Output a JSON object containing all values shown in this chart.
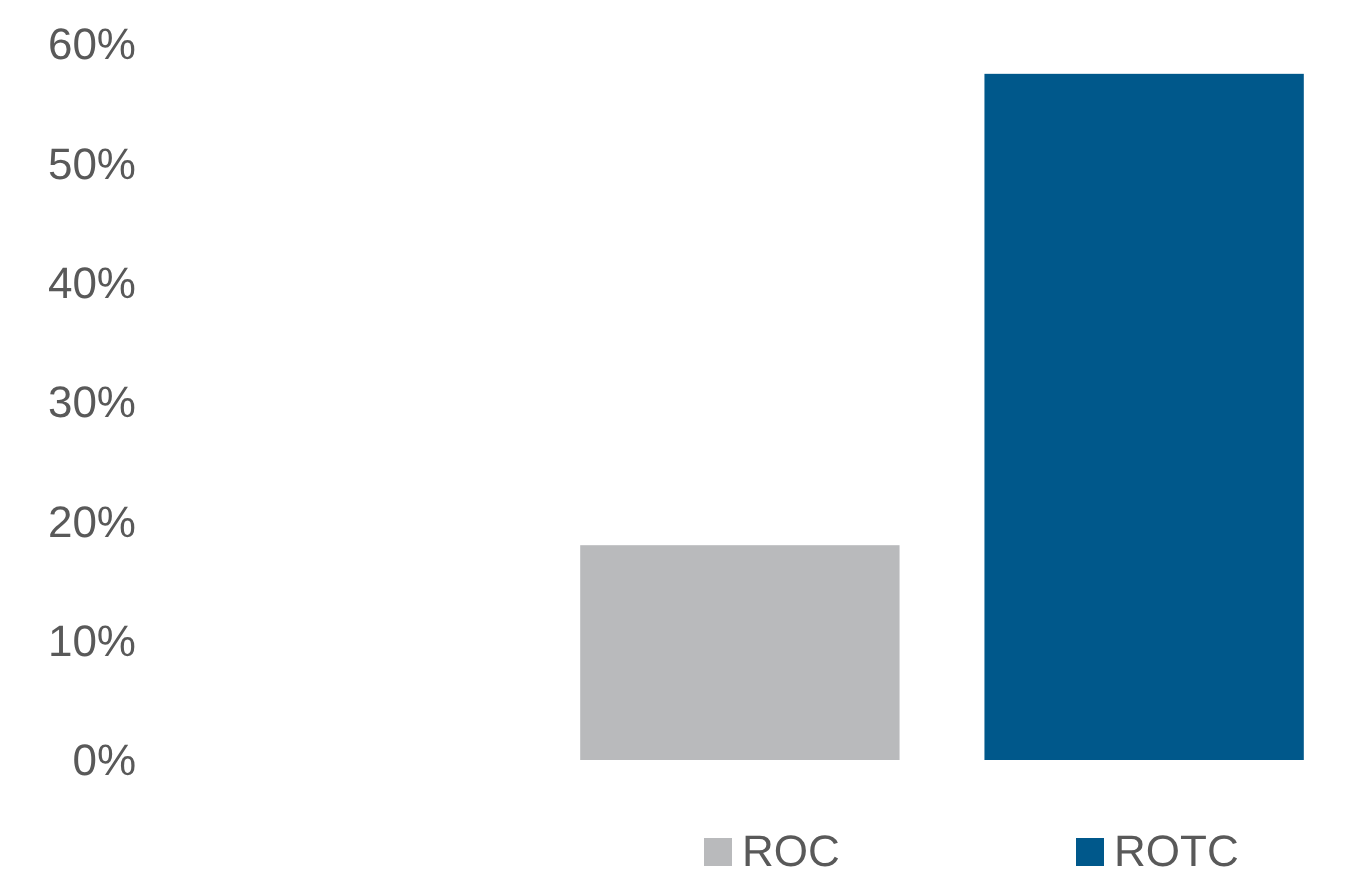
{
  "chart_data": {
    "type": "bar",
    "categories": [
      null
    ],
    "series": [
      {
        "name": "ROC",
        "color": "#b9babc",
        "values": [
          18
        ]
      },
      {
        "name": "ROTC",
        "color": "#00588b",
        "values": [
          57.5
        ]
      }
    ],
    "ylim": [
      0,
      60
    ],
    "yticks": [
      {
        "value": 0,
        "label": "0%"
      },
      {
        "value": 10,
        "label": "10%"
      },
      {
        "value": 20,
        "label": "20%"
      },
      {
        "value": 30,
        "label": "30%"
      },
      {
        "value": 40,
        "label": "40%"
      },
      {
        "value": 50,
        "label": "50%"
      },
      {
        "value": 60,
        "label": "60%"
      }
    ],
    "grid": false,
    "legend": "bottom"
  }
}
